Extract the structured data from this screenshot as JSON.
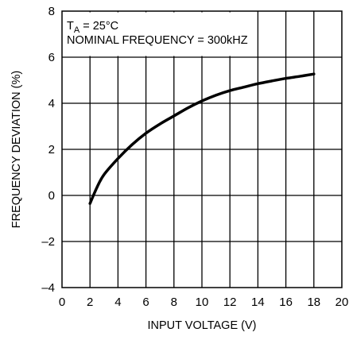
{
  "chart_data": {
    "type": "line",
    "title": "",
    "xlabel": "INPUT VOLTAGE (V)",
    "ylabel": "FREQUENCY DEVIATION (%)",
    "xlim": [
      0,
      20
    ],
    "ylim": [
      -4,
      8
    ],
    "x_ticks": [
      0,
      2,
      4,
      6,
      8,
      10,
      12,
      14,
      16,
      18,
      20
    ],
    "y_ticks": [
      -4,
      -2,
      0,
      2,
      4,
      6,
      8
    ],
    "x_tick_labels": [
      "0",
      "2",
      "4",
      "6",
      "8",
      "10",
      "12",
      "14",
      "16",
      "18",
      "20"
    ],
    "y_tick_labels": [
      "–4",
      "–2",
      "0",
      "2",
      "4",
      "6",
      "8"
    ],
    "grid": true,
    "annotations": {
      "ta_prefix": "T",
      "ta_sub": "A",
      "ta_value": " = 25°C",
      "nominal": "NOMINAL FREQUENCY = 300kHZ"
    },
    "series": [
      {
        "x": [
          2.0,
          2.5,
          3,
          4,
          5,
          6,
          7,
          8,
          9,
          10,
          11,
          12,
          13,
          14,
          15,
          16,
          17,
          18
        ],
        "y": [
          -0.35,
          0.35,
          0.9,
          1.6,
          2.2,
          2.7,
          3.1,
          3.45,
          3.8,
          4.1,
          4.35,
          4.55,
          4.7,
          4.85,
          4.97,
          5.08,
          5.17,
          5.27
        ]
      }
    ],
    "line_color": "#000000"
  }
}
